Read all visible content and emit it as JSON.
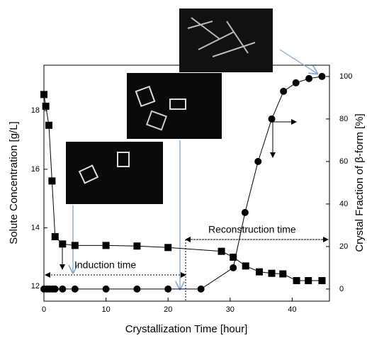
{
  "chart_data": {
    "type": "line",
    "x_label": "Crystallization Time [hour]",
    "y_label": "Solute Concentration [g/L]",
    "y2_label": "Crystal Fraction of β-form [%]",
    "annotations": [
      "Induction time",
      "Reconstruction time"
    ],
    "xlim": [
      0,
      46
    ],
    "xticks": [
      0,
      10,
      20,
      30,
      40
    ],
    "ylim": [
      11.5,
      19.55
    ],
    "yticks": [
      12,
      14,
      16,
      18
    ],
    "y2lim": [
      -5.7,
      105.3
    ],
    "y2ticks": [
      0,
      20,
      40,
      60,
      80,
      100
    ],
    "series": [
      {
        "marker": "square",
        "color": "#000000",
        "x": [
          0,
          0.3,
          0.8,
          1.3,
          1.8,
          3,
          5,
          10,
          15,
          20,
          28.6,
          30.5,
          32.5,
          34.7,
          36.7,
          38.5,
          40.7,
          42.6,
          44.8
        ],
        "values": [
          18.55,
          18.15,
          17.5,
          15.6,
          13.7,
          13.45,
          13.4,
          13.4,
          13.38,
          13.33,
          13.2,
          13.0,
          12.7,
          12.5,
          12.45,
          12.43,
          12.2,
          12.2,
          12.2
        ]
      },
      {
        "marker": "circle",
        "color": "#000000",
        "axis": "y2",
        "x": [
          0,
          0.5,
          0.9,
          1.4,
          1.8,
          3,
          5,
          10,
          15,
          20,
          25.3,
          30.5,
          32.4,
          34.5,
          36.7,
          38.6,
          40.6,
          42.7,
          44.8
        ],
        "values": [
          0,
          0,
          0,
          0,
          0,
          0,
          0,
          0,
          0,
          0,
          0,
          10,
          36,
          60,
          80,
          93,
          97,
          99,
          100
        ]
      }
    ]
  }
}
